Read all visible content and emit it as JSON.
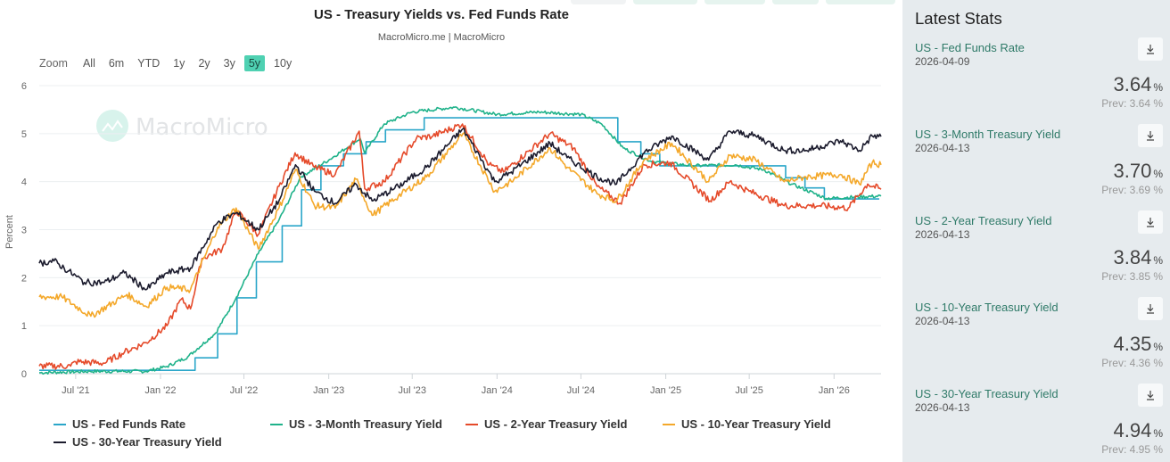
{
  "chart_data": {
    "type": "line",
    "title": "US - Treasury Yields vs. Fed Funds Rate",
    "subtitle": "MacroMicro.me | MacroMicro",
    "watermark": "MacroMicro",
    "xlabel": "",
    "ylabel": "Percent",
    "ylim": [
      0,
      6
    ],
    "yticks": [
      "0",
      "1",
      "2",
      "3",
      "4",
      "5",
      "6"
    ],
    "xlim": [
      "2021-04-13",
      "2026-04-13"
    ],
    "xticks": [
      {
        "date": "2021-07-01",
        "label": "Jul '21"
      },
      {
        "date": "2022-01-01",
        "label": "Jan '22"
      },
      {
        "date": "2022-07-01",
        "label": "Jul '22"
      },
      {
        "date": "2023-01-01",
        "label": "Jan '23"
      },
      {
        "date": "2023-07-01",
        "label": "Jul '23"
      },
      {
        "date": "2024-01-01",
        "label": "Jan '24"
      },
      {
        "date": "2024-07-01",
        "label": "Jul '24"
      },
      {
        "date": "2025-01-01",
        "label": "Jan '25"
      },
      {
        "date": "2025-07-01",
        "label": "Jul '25"
      },
      {
        "date": "2026-01-01",
        "label": "Jan '26"
      }
    ],
    "grid": true,
    "legend_position": "bottom",
    "series": [
      {
        "name": "US - Fed Funds Rate",
        "color": "#2aa6c9",
        "step": true,
        "points": [
          [
            "2021-04-13",
            0.07
          ],
          [
            "2022-03-17",
            0.33
          ],
          [
            "2022-05-05",
            0.83
          ],
          [
            "2022-06-16",
            1.58
          ],
          [
            "2022-07-28",
            2.33
          ],
          [
            "2022-09-22",
            3.08
          ],
          [
            "2022-11-03",
            3.83
          ],
          [
            "2022-12-15",
            4.33
          ],
          [
            "2023-02-02",
            4.58
          ],
          [
            "2023-03-23",
            4.83
          ],
          [
            "2023-05-04",
            5.08
          ],
          [
            "2023-07-27",
            5.33
          ],
          [
            "2024-09-19",
            4.83
          ],
          [
            "2024-11-08",
            4.58
          ],
          [
            "2024-12-19",
            4.33
          ],
          [
            "2025-09-18",
            4.08
          ],
          [
            "2025-10-30",
            3.87
          ],
          [
            "2025-12-11",
            3.64
          ],
          [
            "2026-04-09",
            3.64
          ]
        ]
      },
      {
        "name": "US - 3-Month Treasury Yield",
        "color": "#1fb28a",
        "points": [
          [
            "2021-04-13",
            0.02
          ],
          [
            "2021-08-01",
            0.05
          ],
          [
            "2021-12-01",
            0.05
          ],
          [
            "2022-01-15",
            0.15
          ],
          [
            "2022-03-01",
            0.35
          ],
          [
            "2022-05-01",
            0.85
          ],
          [
            "2022-06-15",
            1.6
          ],
          [
            "2022-08-01",
            2.5
          ],
          [
            "2022-09-15",
            3.2
          ],
          [
            "2022-11-01",
            4.1
          ],
          [
            "2023-01-01",
            4.45
          ],
          [
            "2023-03-10",
            4.9
          ],
          [
            "2023-03-20",
            4.6
          ],
          [
            "2023-05-01",
            5.2
          ],
          [
            "2023-07-01",
            5.45
          ],
          [
            "2023-10-01",
            5.55
          ],
          [
            "2024-01-01",
            5.4
          ],
          [
            "2024-04-01",
            5.45
          ],
          [
            "2024-07-01",
            5.4
          ],
          [
            "2024-08-15",
            5.2
          ],
          [
            "2024-10-01",
            4.7
          ],
          [
            "2024-12-01",
            4.42
          ],
          [
            "2025-03-01",
            4.33
          ],
          [
            "2025-06-01",
            4.35
          ],
          [
            "2025-08-01",
            4.25
          ],
          [
            "2025-10-01",
            3.95
          ],
          [
            "2025-12-15",
            3.65
          ],
          [
            "2026-02-15",
            3.68
          ],
          [
            "2026-04-13",
            3.7
          ]
        ]
      },
      {
        "name": "US - 2-Year Treasury Yield",
        "color": "#e54a2a",
        "points": [
          [
            "2021-04-13",
            0.16
          ],
          [
            "2021-06-20",
            0.16
          ],
          [
            "2021-07-01",
            0.25
          ],
          [
            "2021-09-01",
            0.22
          ],
          [
            "2021-10-15",
            0.45
          ],
          [
            "2021-12-01",
            0.65
          ],
          [
            "2022-01-15",
            1.0
          ],
          [
            "2022-02-15",
            1.55
          ],
          [
            "2022-03-07",
            1.35
          ],
          [
            "2022-04-01",
            2.4
          ],
          [
            "2022-05-15",
            2.6
          ],
          [
            "2022-06-14",
            3.4
          ],
          [
            "2022-08-01",
            2.9
          ],
          [
            "2022-09-15",
            3.9
          ],
          [
            "2022-10-20",
            4.6
          ],
          [
            "2022-12-01",
            4.3
          ],
          [
            "2023-01-15",
            4.15
          ],
          [
            "2023-03-08",
            5.05
          ],
          [
            "2023-03-20",
            3.85
          ],
          [
            "2023-05-01",
            4.0
          ],
          [
            "2023-07-10",
            4.9
          ],
          [
            "2023-08-15",
            4.95
          ],
          [
            "2023-10-18",
            5.2
          ],
          [
            "2023-12-15",
            4.35
          ],
          [
            "2024-01-15",
            4.2
          ],
          [
            "2024-04-25",
            5.0
          ],
          [
            "2024-06-15",
            4.7
          ],
          [
            "2024-08-05",
            3.9
          ],
          [
            "2024-09-24",
            3.55
          ],
          [
            "2024-11-15",
            4.35
          ],
          [
            "2025-01-10",
            4.4
          ],
          [
            "2025-04-07",
            3.6
          ],
          [
            "2025-05-20",
            4.0
          ],
          [
            "2025-07-01",
            3.8
          ],
          [
            "2025-09-15",
            3.5
          ],
          [
            "2025-12-01",
            3.5
          ],
          [
            "2026-02-01",
            3.45
          ],
          [
            "2026-03-15",
            3.95
          ],
          [
            "2026-04-13",
            3.84
          ]
        ]
      },
      {
        "name": "US - 10-Year Treasury Yield",
        "color": "#f4a82a",
        "points": [
          [
            "2021-04-13",
            1.6
          ],
          [
            "2021-06-01",
            1.6
          ],
          [
            "2021-08-03",
            1.2
          ],
          [
            "2021-10-20",
            1.65
          ],
          [
            "2021-12-01",
            1.4
          ],
          [
            "2022-01-15",
            1.8
          ],
          [
            "2022-03-07",
            1.75
          ],
          [
            "2022-05-05",
            3.05
          ],
          [
            "2022-06-14",
            3.45
          ],
          [
            "2022-08-01",
            2.6
          ],
          [
            "2022-09-15",
            3.45
          ],
          [
            "2022-10-21",
            4.25
          ],
          [
            "2022-12-01",
            3.5
          ],
          [
            "2023-01-15",
            3.45
          ],
          [
            "2023-03-01",
            4.05
          ],
          [
            "2023-04-05",
            3.3
          ],
          [
            "2023-06-01",
            3.7
          ],
          [
            "2023-08-01",
            4.1
          ],
          [
            "2023-10-19",
            5.0
          ],
          [
            "2023-12-27",
            3.8
          ],
          [
            "2024-02-01",
            4.0
          ],
          [
            "2024-04-25",
            4.7
          ],
          [
            "2024-06-01",
            4.3
          ],
          [
            "2024-08-05",
            3.75
          ],
          [
            "2024-09-16",
            3.6
          ],
          [
            "2024-11-15",
            4.45
          ],
          [
            "2025-01-14",
            4.8
          ],
          [
            "2025-04-04",
            4.0
          ],
          [
            "2025-05-20",
            4.55
          ],
          [
            "2025-07-15",
            4.45
          ],
          [
            "2025-09-15",
            4.0
          ],
          [
            "2025-11-01",
            4.1
          ],
          [
            "2026-01-15",
            4.15
          ],
          [
            "2026-02-25",
            3.95
          ],
          [
            "2026-03-25",
            4.4
          ],
          [
            "2026-04-13",
            4.35
          ]
        ]
      },
      {
        "name": "US - 30-Year Treasury Yield",
        "color": "#1c1c2e",
        "points": [
          [
            "2021-04-13",
            2.3
          ],
          [
            "2021-05-15",
            2.35
          ],
          [
            "2021-07-20",
            1.9
          ],
          [
            "2021-09-01",
            1.9
          ],
          [
            "2021-10-15",
            2.1
          ],
          [
            "2021-12-01",
            1.75
          ],
          [
            "2022-01-15",
            2.1
          ],
          [
            "2022-03-07",
            2.2
          ],
          [
            "2022-05-05",
            3.15
          ],
          [
            "2022-06-14",
            3.35
          ],
          [
            "2022-08-01",
            3.0
          ],
          [
            "2022-09-15",
            3.6
          ],
          [
            "2022-10-21",
            4.35
          ],
          [
            "2022-12-01",
            3.8
          ],
          [
            "2023-01-15",
            3.55
          ],
          [
            "2023-03-01",
            3.95
          ],
          [
            "2023-04-05",
            3.6
          ],
          [
            "2023-06-01",
            3.9
          ],
          [
            "2023-08-01",
            4.3
          ],
          [
            "2023-10-19",
            5.1
          ],
          [
            "2023-12-27",
            4.0
          ],
          [
            "2024-02-01",
            4.2
          ],
          [
            "2024-04-25",
            4.8
          ],
          [
            "2024-06-01",
            4.5
          ],
          [
            "2024-08-05",
            4.1
          ],
          [
            "2024-09-16",
            3.95
          ],
          [
            "2024-11-15",
            4.6
          ],
          [
            "2025-01-14",
            4.95
          ],
          [
            "2025-04-04",
            4.45
          ],
          [
            "2025-05-20",
            5.05
          ],
          [
            "2025-07-15",
            4.95
          ],
          [
            "2025-09-15",
            4.65
          ],
          [
            "2025-11-01",
            4.65
          ],
          [
            "2026-01-15",
            4.85
          ],
          [
            "2026-02-25",
            4.65
          ],
          [
            "2026-03-25",
            4.95
          ],
          [
            "2026-04-13",
            4.94
          ]
        ]
      }
    ]
  },
  "top_tabs": [
    "",
    "",
    "",
    "",
    ""
  ],
  "range_selector": {
    "label": "Zoom",
    "buttons": [
      "All",
      "6m",
      "YTD",
      "1y",
      "2y",
      "3y",
      "5y",
      "10y"
    ],
    "active": "5y"
  },
  "stats": {
    "title": "Latest Stats",
    "items": [
      {
        "name": "US - Fed Funds Rate",
        "date": "2026-04-09",
        "value": "3.64",
        "unit": "%",
        "prev": "Prev: 3.64 %"
      },
      {
        "name": "US - 3-Month Treasury Yield",
        "date": "2026-04-13",
        "value": "3.70",
        "unit": "%",
        "prev": "Prev: 3.69 %"
      },
      {
        "name": "US - 2-Year Treasury Yield",
        "date": "2026-04-13",
        "value": "3.84",
        "unit": "%",
        "prev": "Prev: 3.85 %"
      },
      {
        "name": "US - 10-Year Treasury Yield",
        "date": "2026-04-13",
        "value": "4.35",
        "unit": "%",
        "prev": "Prev: 4.36 %"
      },
      {
        "name": "US - 30-Year Treasury Yield",
        "date": "2026-04-13",
        "value": "4.94",
        "unit": "%",
        "prev": "Prev: 4.95 %"
      }
    ]
  },
  "icons": {
    "download": "download-icon",
    "watermark_logo": "macromicro-logo-icon"
  }
}
